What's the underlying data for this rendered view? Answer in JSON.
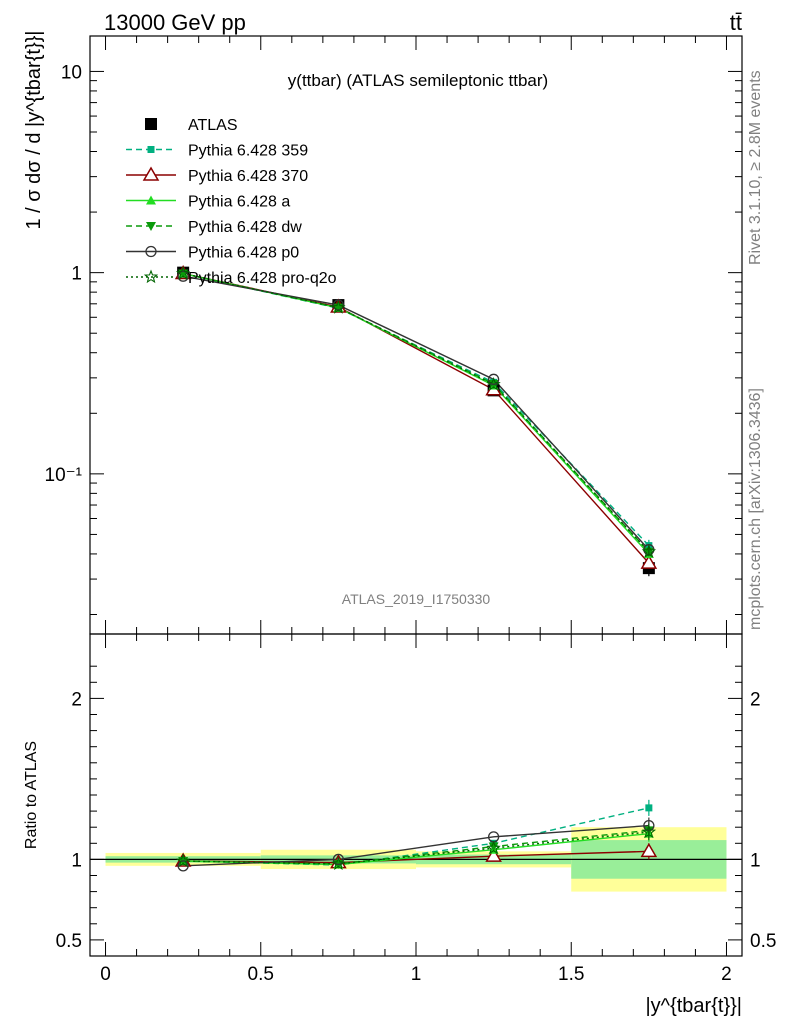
{
  "header": {
    "left": "13000 GeV pp",
    "right": "tt̄"
  },
  "side_labels": {
    "rivet": "Rivet 3.1.10, ≥ 2.8M events",
    "mcplots": "mcplots.cern.ch [arXiv:1306.3436]"
  },
  "chart_data": [
    {
      "panel": "main",
      "type": "line",
      "title": "y(ttbar) (ATLAS semileptonic ttbar)",
      "watermark": "ATLAS_2019_I1750330",
      "ylabel": "1 / σ dσ / d |y^{tbar{t}}|",
      "yscale": "log",
      "ylim": [
        0.016,
        15
      ],
      "xlim": [
        -0.05,
        2.05
      ],
      "ytick_labels": [
        "10",
        "1",
        "10⁻¹"
      ],
      "legend_position": "top-left",
      "x": [
        0.25,
        0.75,
        1.25,
        1.75
      ],
      "series": [
        {
          "name": "ATLAS",
          "values": [
            1.0,
            0.69,
            0.26,
            0.034
          ],
          "color": "#000000",
          "marker": "square",
          "dash": "none",
          "err": [
            0.03,
            0.02,
            0.015,
            0.003
          ]
        },
        {
          "name": "Pythia 6.428 359",
          "values": [
            0.99,
            0.665,
            0.285,
            0.044
          ],
          "color": "#00b080",
          "marker": "square-small",
          "dash": "dashed",
          "err": [
            0,
            0,
            0,
            0.003
          ]
        },
        {
          "name": "Pythia 6.428 370",
          "values": [
            0.99,
            0.675,
            0.262,
            0.036
          ],
          "color": "#8b0000",
          "marker": "triangle-open",
          "dash": "none",
          "err": [
            0,
            0,
            0,
            0.002
          ]
        },
        {
          "name": "Pythia 6.428 a",
          "values": [
            0.99,
            0.668,
            0.275,
            0.04
          ],
          "color": "#22dd22",
          "marker": "triangle",
          "dash": "none",
          "err": [
            0,
            0,
            0,
            0.002
          ]
        },
        {
          "name": "Pythia 6.428 dw",
          "values": [
            0.99,
            0.67,
            0.28,
            0.041
          ],
          "color": "#0a9a0a",
          "marker": "triangle-down",
          "dash": "dashed",
          "err": [
            0,
            0,
            0,
            0.002
          ]
        },
        {
          "name": "Pythia 6.428 p0",
          "values": [
            0.96,
            0.69,
            0.295,
            0.042
          ],
          "color": "#333333",
          "marker": "circle-open",
          "dash": "none",
          "err": [
            0,
            0,
            0,
            0.002
          ]
        },
        {
          "name": "Pythia 6.428 pro-q2o",
          "values": [
            0.99,
            0.67,
            0.278,
            0.041
          ],
          "color": "#006400",
          "marker": "star",
          "dash": "dotted",
          "err": [
            0,
            0,
            0,
            0.002
          ]
        }
      ]
    },
    {
      "panel": "ratio",
      "type": "line",
      "ylabel": "Ratio to ATLAS",
      "xlabel": "|y^{tbar{t}}|",
      "ylim": [
        0.4,
        2.4
      ],
      "xlim": [
        -0.05,
        2.05
      ],
      "ytick_labels": [
        "0.5",
        "1",
        "2"
      ],
      "xtick_labels": [
        "0",
        "0.5",
        "1",
        "1.5",
        "2"
      ],
      "bins": [
        [
          0,
          0.5
        ],
        [
          0.5,
          1.0
        ],
        [
          1.0,
          1.5
        ],
        [
          1.5,
          2.0
        ]
      ],
      "band_inner": [
        [
          0.98,
          1.02
        ],
        [
          0.975,
          1.025
        ],
        [
          0.97,
          1.03
        ],
        [
          0.88,
          1.12
        ]
      ],
      "band_outer": [
        [
          0.96,
          1.04
        ],
        [
          0.94,
          1.06
        ],
        [
          0.95,
          1.05
        ],
        [
          0.8,
          1.2
        ]
      ],
      "x": [
        0.25,
        0.75,
        1.25,
        1.75
      ],
      "series": [
        {
          "name": "Pythia 6.428 359",
          "values": [
            0.99,
            0.965,
            1.1,
            1.32
          ],
          "color": "#00b080",
          "marker": "square-small",
          "dash": "dashed"
        },
        {
          "name": "Pythia 6.428 370",
          "values": [
            0.99,
            0.98,
            1.02,
            1.05
          ],
          "color": "#8b0000",
          "marker": "triangle-open",
          "dash": "none"
        },
        {
          "name": "Pythia 6.428 a",
          "values": [
            0.99,
            0.968,
            1.06,
            1.16
          ],
          "color": "#22dd22",
          "marker": "triangle",
          "dash": "none"
        },
        {
          "name": "Pythia 6.428 dw",
          "values": [
            0.99,
            0.972,
            1.08,
            1.18
          ],
          "color": "#0a9a0a",
          "marker": "triangle-down",
          "dash": "dashed"
        },
        {
          "name": "Pythia 6.428 p0",
          "values": [
            0.96,
            1.0,
            1.14,
            1.21
          ],
          "color": "#333333",
          "marker": "circle-open",
          "dash": "none"
        },
        {
          "name": "Pythia 6.428 pro-q2o",
          "values": [
            0.99,
            0.972,
            1.07,
            1.17
          ],
          "color": "#006400",
          "marker": "star",
          "dash": "dotted"
        }
      ]
    }
  ]
}
